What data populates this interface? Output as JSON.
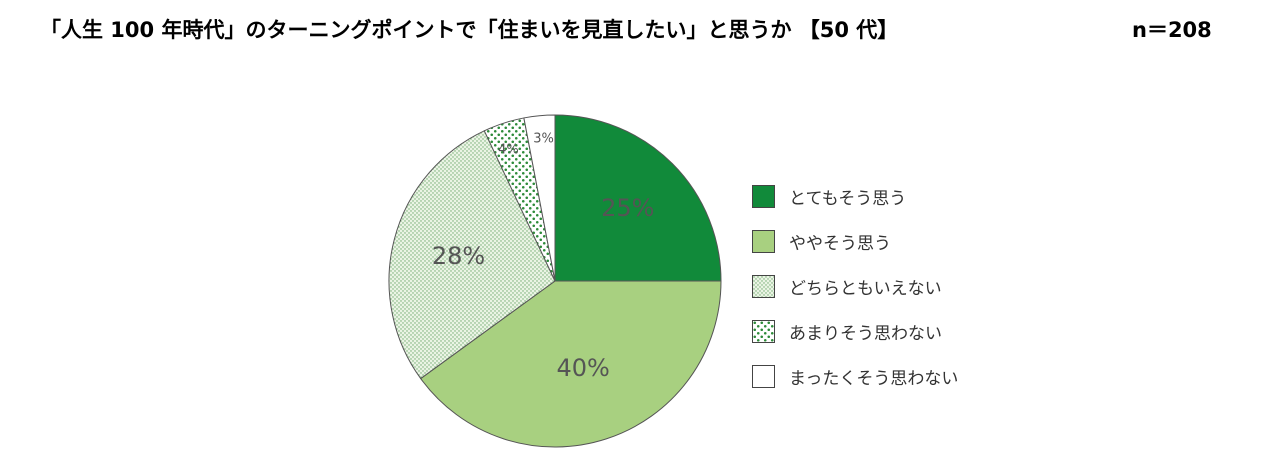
{
  "title": "「人生 100 年時代」のターニングポイントで「住まいを見直したい」と思うか 【50 代】",
  "sample": "n＝208",
  "chart_data": {
    "type": "pie",
    "start_angle": "top (12 o'clock), clockwise",
    "legend_position": "right",
    "categories": [
      "とてもそう思う",
      "ややそう思う",
      "どちらともいえない",
      "あまりそう思わない",
      "まったくそう思わない"
    ],
    "values": [
      25,
      40,
      28,
      4,
      3
    ],
    "labels": [
      "25%",
      "40%",
      "28%",
      "4%",
      "3%"
    ],
    "colors": [
      "#118a3a",
      "#a8d080",
      "#e9f3e2",
      "#ffffff",
      "#ffffff"
    ],
    "patterns": [
      "solid",
      "solid",
      "fine-dots",
      "sparse-dots",
      "none"
    ]
  }
}
